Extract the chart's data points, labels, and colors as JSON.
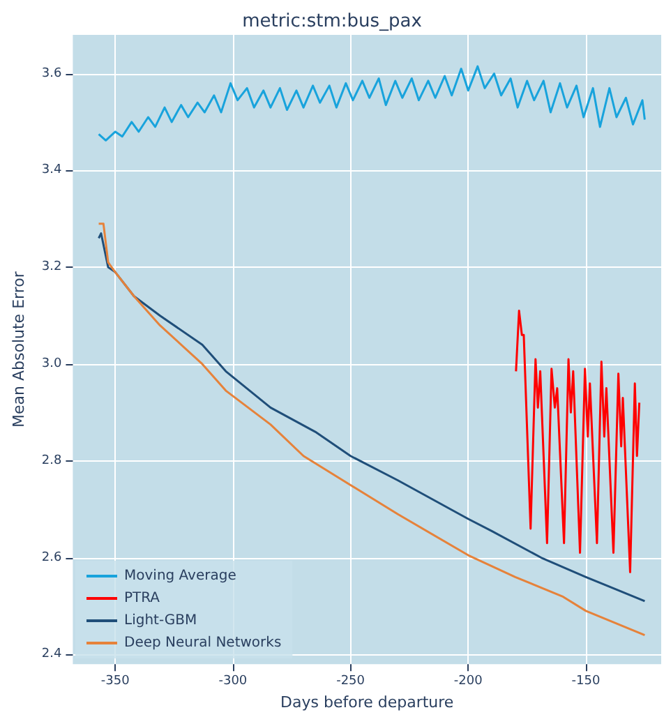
{
  "chart_data": {
    "type": "line",
    "title": "metric:stm:bus_pax",
    "xlabel": "Days before departure",
    "ylabel": "Mean Absolute Error",
    "xlim": [
      -368,
      -118
    ],
    "xticks": [
      -350,
      -300,
      -250,
      -200,
      -150
    ],
    "ylim": [
      2.38,
      3.68
    ],
    "yticks": [
      2.4,
      2.6,
      2.8,
      {
        "value": 3,
        "label": "3.0"
      },
      3.2,
      3.4,
      3.6
    ],
    "grid": true,
    "legend": "bottom left",
    "marker": "none",
    "line_style": "solid",
    "series": [
      {
        "name": "Moving Average",
        "color": "#18a3dc",
        "x": [
          -357,
          -354,
          -350,
          -347,
          -343,
          -340,
          -336,
          -333,
          -329,
          -326,
          -322,
          -319,
          -315,
          -312,
          -308,
          -305,
          -301,
          -298,
          -294,
          -291,
          -287,
          -284,
          -280,
          -277,
          -273,
          -270,
          -266,
          -263,
          -259,
          -256,
          -252,
          -249,
          -245,
          -242,
          -238,
          -235,
          -231,
          -228,
          -224,
          -221,
          -217,
          -214,
          -210,
          -207,
          -203,
          -200,
          -196,
          -193,
          -189,
          -186,
          -182,
          -179,
          -175,
          -172,
          -168,
          -165,
          -161,
          -158,
          -154,
          -151,
          -147,
          -144,
          -140,
          -137,
          -133,
          -130,
          -126,
          -125
        ],
        "values": [
          3.475,
          3.462,
          3.48,
          3.47,
          3.5,
          3.48,
          3.51,
          3.49,
          3.53,
          3.5,
          3.535,
          3.51,
          3.54,
          3.52,
          3.555,
          3.52,
          3.58,
          3.545,
          3.57,
          3.53,
          3.565,
          3.53,
          3.57,
          3.525,
          3.565,
          3.53,
          3.575,
          3.54,
          3.575,
          3.53,
          3.58,
          3.545,
          3.585,
          3.55,
          3.59,
          3.535,
          3.585,
          3.55,
          3.59,
          3.545,
          3.585,
          3.55,
          3.595,
          3.555,
          3.61,
          3.565,
          3.615,
          3.57,
          3.6,
          3.555,
          3.59,
          3.53,
          3.585,
          3.545,
          3.585,
          3.52,
          3.58,
          3.53,
          3.575,
          3.51,
          3.57,
          3.49,
          3.57,
          3.51,
          3.55,
          3.495,
          3.545,
          3.505
        ]
      },
      {
        "name": "PTRA",
        "color": "#ff0000",
        "x": [
          -179.7,
          -178.4,
          -177.2,
          -176.4,
          -173.5,
          -171.4,
          -170.4,
          -169.4,
          -166.5,
          -164.6,
          -163.2,
          -162.2,
          -159.3,
          -157.4,
          -156.4,
          -155.4,
          -152.5,
          -150.4,
          -149.2,
          -148.3,
          -145.3,
          -143.4,
          -142.2,
          -141.3,
          -138.3,
          -136.2,
          -135,
          -134.3,
          -131.2,
          -129.2,
          -128.3,
          -127.3
        ],
        "values": [
          2.985,
          3.11,
          3.06,
          3.06,
          2.66,
          3.01,
          2.91,
          2.985,
          2.63,
          2.99,
          2.91,
          2.95,
          2.63,
          3.01,
          2.9,
          2.985,
          2.61,
          2.99,
          2.85,
          2.96,
          2.63,
          3.005,
          2.85,
          2.95,
          2.61,
          2.98,
          2.83,
          2.93,
          2.57,
          2.96,
          2.81,
          2.92
        ]
      },
      {
        "name": "Light-GBM",
        "color": "#1f4e79",
        "x": [
          -357,
          -356,
          -353,
          -350,
          -342,
          -331,
          -313,
          -303,
          -284,
          -265,
          -250,
          -230,
          -200,
          -190,
          -169,
          -150,
          -140,
          -125
        ],
        "values": [
          3.26,
          3.27,
          3.2,
          3.19,
          3.14,
          3.1,
          3.04,
          2.985,
          2.91,
          2.86,
          2.81,
          2.76,
          2.68,
          2.655,
          2.6,
          2.56,
          2.54,
          2.51
        ]
      },
      {
        "name": "Deep Neural Networks",
        "color": "#e6823a",
        "x": [
          -357,
          -355,
          -353,
          -350,
          -342,
          -331,
          -313,
          -303,
          -284,
          -270,
          -250,
          -230,
          -200,
          -180,
          -160,
          -150,
          -125
        ],
        "values": [
          3.29,
          3.29,
          3.21,
          3.19,
          3.14,
          3.08,
          3.0,
          2.945,
          2.875,
          2.81,
          2.75,
          2.69,
          2.605,
          2.56,
          2.52,
          2.49,
          2.44
        ]
      }
    ]
  }
}
